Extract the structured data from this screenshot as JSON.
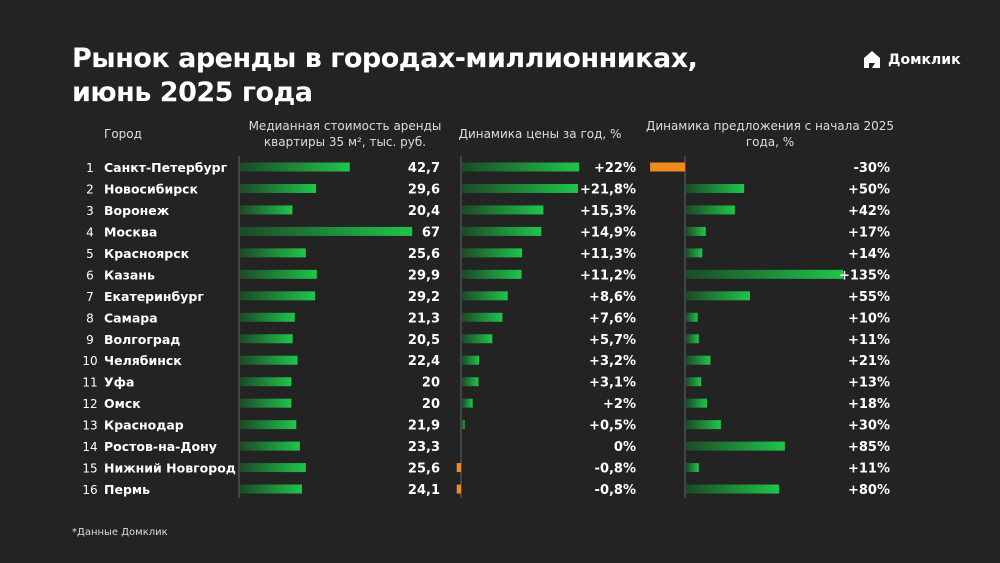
{
  "title_line1": "Рынок аренды в городах-миллионниках,",
  "title_line2": "июнь 2025 года",
  "brand": "Домклик",
  "footnote": "*Данные Домклик",
  "colors": {
    "background": "#232323",
    "positive": "#1fc64a",
    "negative": "#f08c1e",
    "axis": "#666666"
  },
  "chart_data": {
    "type": "bar",
    "headers": {
      "city": "Город",
      "rent_line1": "Медианная стоимость аренды",
      "rent_line2": "квартиры 35 м², тыс. руб.",
      "price": "Динамика цены за год, %",
      "supply_line1": "Динамика предложения с начала 2025",
      "supply_line2": "года, %"
    },
    "ranks": [
      "1",
      "2",
      "3",
      "4",
      "5",
      "6",
      "7",
      "8",
      "9",
      "10",
      "11",
      "12",
      "13",
      "14",
      "15",
      "16"
    ],
    "categories": [
      "Санкт-Петербург",
      "Новосибирск",
      "Воронеж",
      "Москва",
      "Красноярск",
      "Казань",
      "Екатеринбург",
      "Самара",
      "Волгоград",
      "Челябинск",
      "Уфа",
      "Омск",
      "Краснодар",
      "Ростов-на-Дону",
      "Нижний Новгород",
      "Пермь"
    ],
    "series": [
      {
        "name": "Медианная стоимость аренды квартиры 35 м², тыс. руб.",
        "values": [
          42.7,
          29.6,
          20.4,
          67,
          25.6,
          29.9,
          29.2,
          21.3,
          20.5,
          22.4,
          20,
          20,
          21.9,
          23.3,
          25.6,
          24.1
        ],
        "labels": [
          "42,7",
          "29,6",
          "20,4",
          "67",
          "25,6",
          "29,9",
          "29,2",
          "21,3",
          "20,5",
          "22,4",
          "20",
          "20",
          "21,9",
          "23,3",
          "25,6",
          "24,1"
        ]
      },
      {
        "name": "Динамика цены за год, %",
        "values": [
          22,
          21.8,
          15.3,
          14.9,
          11.3,
          11.2,
          8.6,
          7.6,
          5.7,
          3.2,
          3.1,
          2,
          0.5,
          0,
          -0.8,
          -0.8
        ],
        "labels": [
          "+22%",
          "+21,8%",
          "+15,3%",
          "+14,9%",
          "+11,3%",
          "+11,2%",
          "+8,6%",
          "+7,6%",
          "+5,7%",
          "+3,2%",
          "+3,1%",
          "+2%",
          "+0,5%",
          "0%",
          "-0,8%",
          "-0,8%"
        ]
      },
      {
        "name": "Динамика предложения с начала 2025 года, %",
        "values": [
          -30,
          50,
          42,
          17,
          14,
          135,
          55,
          10,
          11,
          21,
          13,
          18,
          30,
          85,
          11,
          80
        ],
        "labels": [
          "-30%",
          "+50%",
          "+42%",
          "+17%",
          "+14%",
          "+135%",
          "+55%",
          "+10%",
          "+11%",
          "+21%",
          "+13%",
          "+18%",
          "+30%",
          "+85%",
          "+11%",
          "+80%"
        ]
      }
    ]
  }
}
